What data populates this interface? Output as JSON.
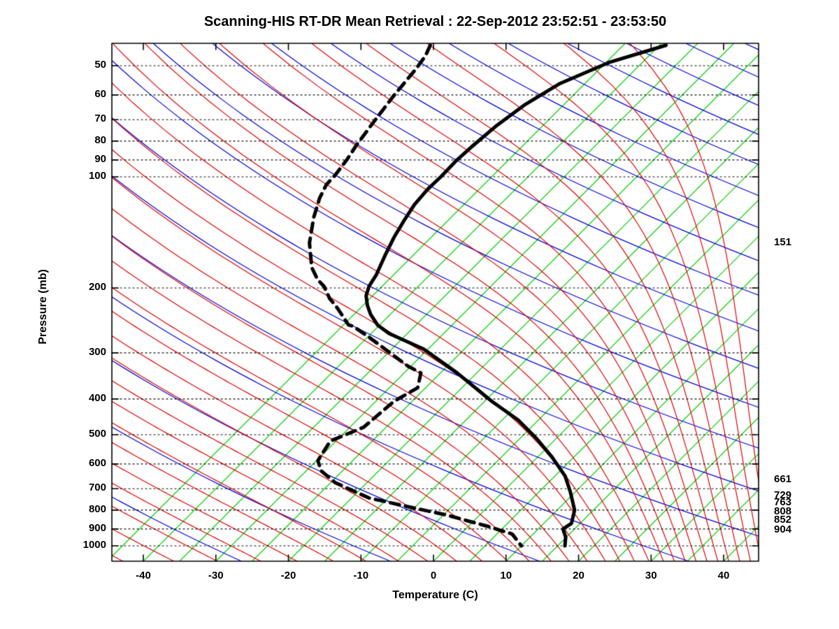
{
  "title": "Scanning-HIS RT-DR Mean Retrieval : 22-Sep-2012 23:52:51 - 23:53:50",
  "axes": {
    "ylabel": "Pressure (mb)",
    "xlabel": "Temperature (C)",
    "pressure_ticks": [
      50,
      60,
      70,
      80,
      90,
      100,
      200,
      300,
      400,
      500,
      600,
      700,
      800,
      900,
      1000
    ],
    "temp_ticks": [
      -40,
      -30,
      -20,
      -10,
      0,
      10,
      20,
      30,
      40
    ],
    "pressure_range_mb": [
      43,
      1100
    ],
    "temp_range_at_bottom_c": [
      -44.3,
      44.8
    ],
    "grid": "dotted horizontal isobars at labeled levels"
  },
  "right_labels": [
    {
      "text": "151",
      "pressure": 151
    },
    {
      "text": "661",
      "pressure": 661
    },
    {
      "text": "729",
      "pressure": 729
    },
    {
      "text": "763",
      "pressure": 763
    },
    {
      "text": "808",
      "pressure": 808
    },
    {
      "text": "852",
      "pressure": 852
    },
    {
      "text": "904",
      "pressure": 904
    }
  ],
  "chart_data": {
    "type": "line",
    "diagram": "skew-t-log-p",
    "title": "Scanning-HIS RT-DR Mean Retrieval : 22-Sep-2012 23:52:51 - 23:53:50",
    "xlabel": "Temperature (C)",
    "ylabel": "Pressure (mb)",
    "skew_deg": 45,
    "series": [
      {
        "name": "temperature",
        "style": "solid",
        "color": "#000000",
        "width": 5,
        "points_p_t": [
          [
            44,
            -39.1
          ],
          [
            49,
            -44.6
          ],
          [
            56,
            -48.5
          ],
          [
            64,
            -50.4
          ],
          [
            73,
            -51.4
          ],
          [
            83,
            -51.9
          ],
          [
            90,
            -52.1
          ],
          [
            100,
            -52.0
          ],
          [
            108,
            -52.1
          ],
          [
            119,
            -51.8
          ],
          [
            132,
            -51.0
          ],
          [
            146,
            -50.1
          ],
          [
            164,
            -48.8
          ],
          [
            184,
            -47.4
          ],
          [
            198,
            -46.8
          ],
          [
            210,
            -45.9
          ],
          [
            223,
            -44.4
          ],
          [
            236,
            -42.7
          ],
          [
            252,
            -40.3
          ],
          [
            266,
            -37.5
          ],
          [
            293,
            -30.6
          ],
          [
            340,
            -22.7
          ],
          [
            406,
            -14.0
          ],
          [
            456,
            -7.8
          ],
          [
            512,
            -2.7
          ],
          [
            575,
            2.0
          ],
          [
            647,
            6.4
          ],
          [
            714,
            9.3
          ],
          [
            800,
            12.4
          ],
          [
            869,
            13.8
          ],
          [
            900,
            13.4
          ],
          [
            947,
            14.9
          ],
          [
            1000,
            16.0
          ]
        ]
      },
      {
        "name": "dewpoint",
        "style": "dashed",
        "color": "#000000",
        "width": 5,
        "points_p_t": [
          [
            44,
            -71.6
          ],
          [
            47,
            -70.8
          ],
          [
            51,
            -70.3
          ],
          [
            60,
            -69.7
          ],
          [
            70,
            -68.9
          ],
          [
            82,
            -68.0
          ],
          [
            90,
            -67.3
          ],
          [
            99,
            -66.8
          ],
          [
            105,
            -66.7
          ],
          [
            114,
            -65.8
          ],
          [
            129,
            -63.9
          ],
          [
            151,
            -61.0
          ],
          [
            176,
            -57.3
          ],
          [
            190,
            -54.8
          ],
          [
            198,
            -53.0
          ],
          [
            214,
            -50.5
          ],
          [
            223,
            -48.8
          ],
          [
            236,
            -46.7
          ],
          [
            252,
            -44.3
          ],
          [
            254,
            -43.5
          ],
          [
            274,
            -39.4
          ],
          [
            326,
            -30.4
          ],
          [
            340,
            -27.7
          ],
          [
            373,
            -26.1
          ],
          [
            406,
            -27.5
          ],
          [
            477,
            -28.1
          ],
          [
            520,
            -30.8
          ],
          [
            588,
            -29.8
          ],
          [
            627,
            -27.9
          ],
          [
            674,
            -24.4
          ],
          [
            742,
            -17.6
          ],
          [
            784,
            -10.9
          ],
          [
            825,
            -4.6
          ],
          [
            883,
            2.4
          ],
          [
            929,
            7.1
          ],
          [
            1000,
            10.0
          ]
        ]
      }
    ],
    "background": {
      "isotherms": {
        "color": "#00cc00",
        "min_c": -45,
        "max_c": 55,
        "step_c": 5
      },
      "dry_adiabats": {
        "color": "#0000dd",
        "theta_k_min": 220,
        "theta_k_max": 600,
        "step_k": 20
      },
      "moist_adiabats": {
        "color": "#e00000",
        "thetaw_list_c": [
          -60,
          -52,
          -45,
          -38,
          -32,
          -26,
          -21,
          -16,
          -11.5,
          -7,
          -3,
          1,
          4.5,
          8,
          11,
          14,
          16.5,
          19,
          21.5,
          23.5,
          25.5,
          27.5,
          29.5,
          31,
          32.5,
          34,
          35.5,
          37,
          38.5,
          40,
          41.5,
          43,
          44.5
        ]
      }
    },
    "legend": "none"
  }
}
